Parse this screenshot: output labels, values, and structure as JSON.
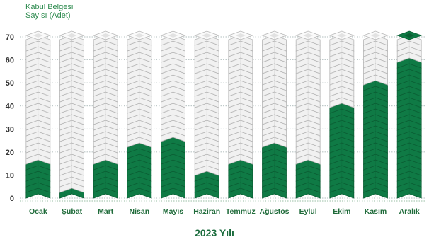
{
  "colors": {
    "filled": "#0f7a45",
    "filled_dark": "#0b5e34",
    "empty": "#f1f1f1",
    "empty_stroke": "#b5b5b5",
    "text_green": "#2e8b4f",
    "axis": "#1f6b3a"
  },
  "chart_data": {
    "type": "bar",
    "title": "",
    "ylabel_line1": "Kabul Belgesi",
    "ylabel_line2": "Sayısı (Adet)",
    "xlabel": "2023 Yılı",
    "categories": [
      "Ocak",
      "Şubat",
      "Mart",
      "Nisan",
      "Mayıs",
      "Haziran",
      "Temmuz",
      "Ağustos",
      "Eylül",
      "Ekim",
      "Kasım",
      "Aralık"
    ],
    "series": [
      {
        "values": [
          17,
          6,
          17,
          24,
          28,
          13,
          17,
          25,
          17,
          43,
          51,
          62
        ]
      }
    ],
    "ylim": [
      0,
      70
    ],
    "yticks": [
      "0",
      "10",
      "20",
      "30",
      "40",
      "50",
      "60",
      "70"
    ],
    "grid": true
  }
}
